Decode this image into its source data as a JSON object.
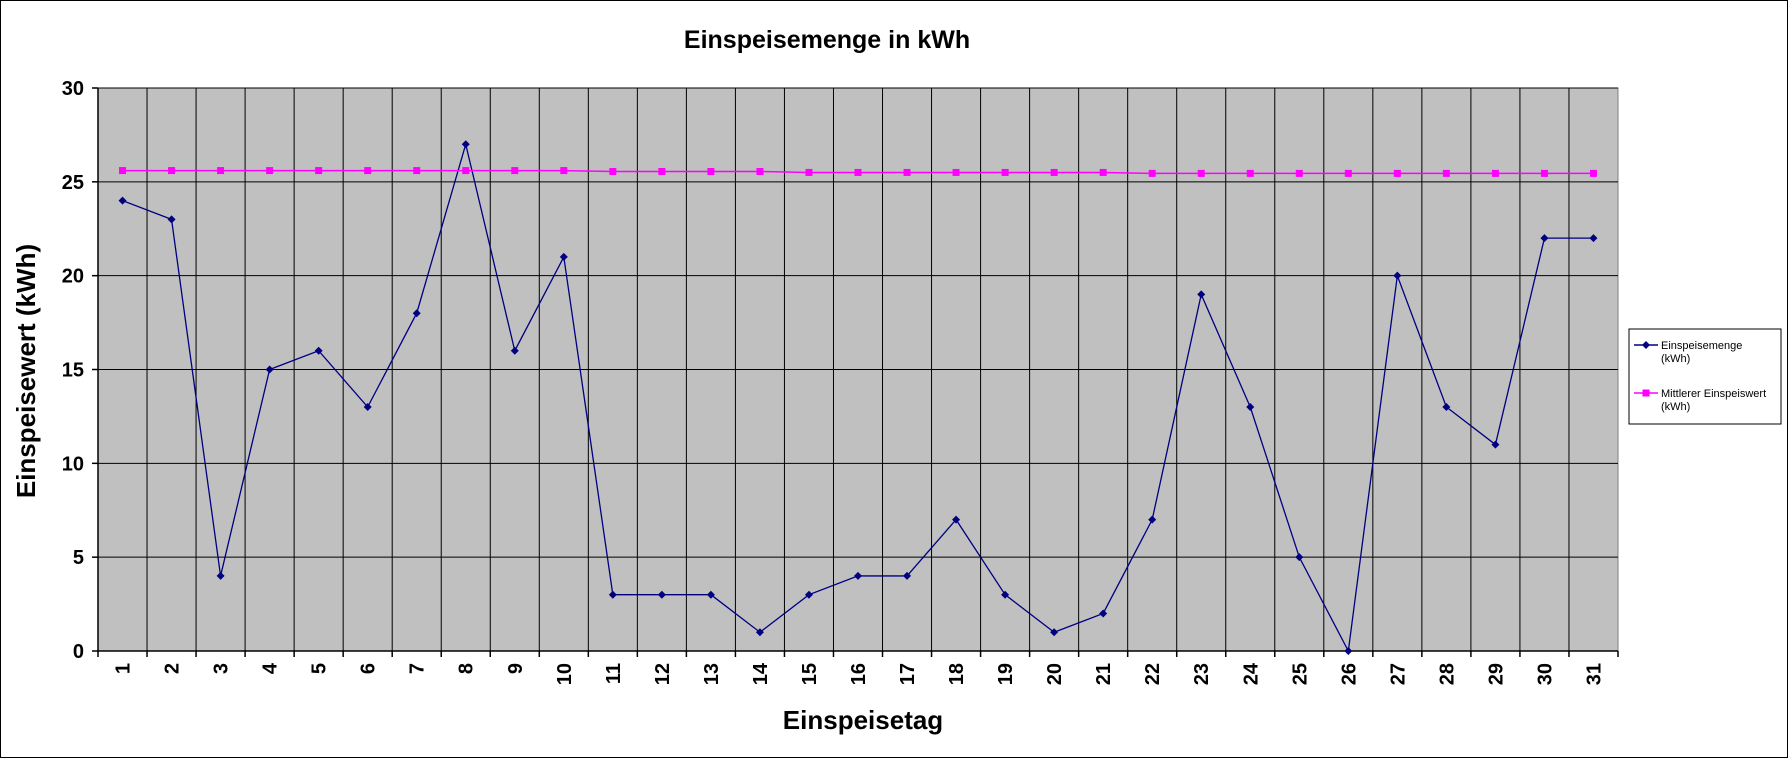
{
  "chart_data": {
    "type": "line",
    "title": "Einspeisemenge in kWh",
    "xlabel": "Einspeisetag",
    "ylabel": "Einspeisewert  (kWh)",
    "categories": [
      "1",
      "2",
      "3",
      "4",
      "5",
      "6",
      "7",
      "8",
      "9",
      "10",
      "11",
      "12",
      "13",
      "14",
      "15",
      "16",
      "17",
      "18",
      "19",
      "20",
      "21",
      "22",
      "23",
      "24",
      "25",
      "26",
      "27",
      "28",
      "29",
      "30",
      "31"
    ],
    "ylim": [
      0,
      30
    ],
    "yticks": [
      "0",
      "5",
      "10",
      "15",
      "20",
      "25",
      "30"
    ],
    "grid": true,
    "legend_position": "right",
    "plot_background": "#c0c0c0",
    "series": [
      {
        "name_line1": "Einspeisemenge",
        "name_line2": "(kWh)",
        "color": "#000080",
        "marker": "diamond",
        "values": [
          24,
          23,
          4,
          15,
          16,
          13,
          18,
          27,
          16,
          21,
          3,
          3,
          3,
          1,
          3,
          4,
          4,
          7,
          3,
          1,
          2,
          7,
          19,
          13,
          5,
          0,
          20,
          13,
          11,
          22,
          22
        ]
      },
      {
        "name_line1": "Mittlerer Einspeiswert",
        "name_line2": "(kWh)",
        "color": "#ff00ff",
        "marker": "square",
        "values": [
          25.6,
          25.6,
          25.6,
          25.6,
          25.6,
          25.6,
          25.6,
          25.6,
          25.6,
          25.6,
          25.55,
          25.55,
          25.55,
          25.55,
          25.5,
          25.5,
          25.5,
          25.5,
          25.5,
          25.5,
          25.5,
          25.45,
          25.45,
          25.45,
          25.45,
          25.45,
          25.45,
          25.45,
          25.45,
          25.45,
          25.45
        ]
      }
    ]
  }
}
